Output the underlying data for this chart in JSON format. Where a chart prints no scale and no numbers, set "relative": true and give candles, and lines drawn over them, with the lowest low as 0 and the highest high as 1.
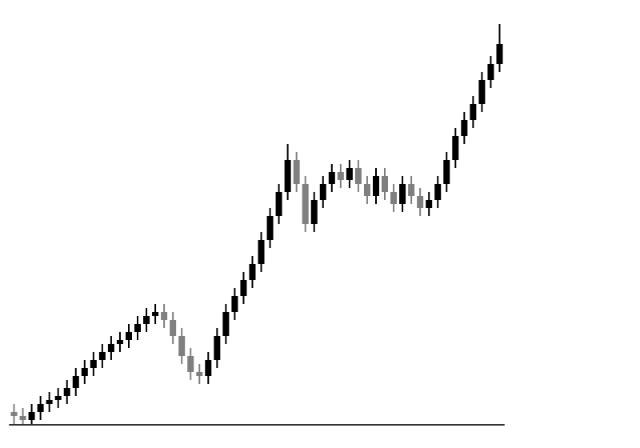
{
  "chart_data": {
    "type": "candlestick",
    "relative": true,
    "grid": false,
    "colors": [
      "#7f7f7f",
      "#7f7f7f",
      "#000000",
      "#000000",
      "#000000",
      "#000000",
      "#000000",
      "#000000",
      "#000000",
      "#000000",
      "#000000",
      "#000000",
      "#000000",
      "#000000",
      "#000000",
      "#000000",
      "#000000",
      "#7f7f7f",
      "#7f7f7f",
      "#7f7f7f",
      "#7f7f7f",
      "#7f7f7f",
      "#000000",
      "#000000",
      "#000000",
      "#000000",
      "#000000",
      "#000000",
      "#000000",
      "#000000",
      "#000000",
      "#000000",
      "#7f7f7f",
      "#7f7f7f",
      "#000000",
      "#000000",
      "#000000",
      "#7f7f7f",
      "#000000",
      "#7f7f7f",
      "#7f7f7f",
      "#000000",
      "#7f7f7f",
      "#7f7f7f",
      "#000000",
      "#7f7f7f",
      "#7f7f7f",
      "#000000",
      "#000000",
      "#000000",
      "#000000",
      "#000000",
      "#000000",
      "#000000",
      "#000000",
      "#000000"
    ],
    "categories": [
      null,
      null,
      null,
      null,
      null,
      null,
      null,
      null,
      null,
      null,
      null,
      null,
      null,
      null,
      null,
      null,
      null,
      null,
      null,
      null,
      null,
      null,
      null,
      null,
      null,
      null,
      null,
      null,
      null,
      null,
      null,
      null,
      null,
      null,
      null,
      null,
      null,
      null,
      null,
      null,
      null,
      null,
      null,
      null,
      null,
      null,
      null,
      null,
      null,
      null,
      null,
      null,
      null,
      null,
      null,
      null
    ],
    "ohlc": [
      [
        0.03,
        0.05,
        0.0,
        0.02
      ],
      [
        0.02,
        0.04,
        0.0,
        0.01
      ],
      [
        0.01,
        0.05,
        0.0,
        0.03
      ],
      [
        0.03,
        0.07,
        0.01,
        0.05
      ],
      [
        0.05,
        0.08,
        0.03,
        0.06
      ],
      [
        0.06,
        0.09,
        0.04,
        0.07
      ],
      [
        0.07,
        0.11,
        0.05,
        0.09
      ],
      [
        0.09,
        0.14,
        0.07,
        0.12
      ],
      [
        0.12,
        0.16,
        0.1,
        0.14
      ],
      [
        0.14,
        0.18,
        0.12,
        0.16
      ],
      [
        0.16,
        0.2,
        0.14,
        0.18
      ],
      [
        0.18,
        0.22,
        0.16,
        0.2
      ],
      [
        0.2,
        0.23,
        0.18,
        0.21
      ],
      [
        0.21,
        0.25,
        0.19,
        0.23
      ],
      [
        0.23,
        0.27,
        0.21,
        0.25
      ],
      [
        0.25,
        0.29,
        0.23,
        0.27
      ],
      [
        0.27,
        0.3,
        0.25,
        0.28
      ],
      [
        0.28,
        0.3,
        0.24,
        0.26
      ],
      [
        0.26,
        0.28,
        0.2,
        0.22
      ],
      [
        0.22,
        0.24,
        0.15,
        0.17
      ],
      [
        0.17,
        0.19,
        0.11,
        0.13
      ],
      [
        0.13,
        0.15,
        0.1,
        0.12
      ],
      [
        0.12,
        0.18,
        0.1,
        0.16
      ],
      [
        0.16,
        0.24,
        0.14,
        0.22
      ],
      [
        0.22,
        0.3,
        0.2,
        0.28
      ],
      [
        0.28,
        0.34,
        0.26,
        0.32
      ],
      [
        0.32,
        0.38,
        0.3,
        0.36
      ],
      [
        0.36,
        0.42,
        0.34,
        0.4
      ],
      [
        0.4,
        0.48,
        0.38,
        0.46
      ],
      [
        0.46,
        0.54,
        0.44,
        0.52
      ],
      [
        0.52,
        0.6,
        0.5,
        0.58
      ],
      [
        0.58,
        0.7,
        0.56,
        0.66
      ],
      [
        0.66,
        0.68,
        0.58,
        0.6
      ],
      [
        0.6,
        0.62,
        0.48,
        0.5
      ],
      [
        0.5,
        0.58,
        0.48,
        0.56
      ],
      [
        0.56,
        0.62,
        0.54,
        0.6
      ],
      [
        0.6,
        0.65,
        0.58,
        0.63
      ],
      [
        0.63,
        0.65,
        0.59,
        0.61
      ],
      [
        0.61,
        0.66,
        0.59,
        0.64
      ],
      [
        0.64,
        0.66,
        0.58,
        0.6
      ],
      [
        0.6,
        0.62,
        0.55,
        0.57
      ],
      [
        0.57,
        0.64,
        0.55,
        0.62
      ],
      [
        0.62,
        0.64,
        0.56,
        0.58
      ],
      [
        0.58,
        0.6,
        0.53,
        0.55
      ],
      [
        0.55,
        0.62,
        0.53,
        0.6
      ],
      [
        0.6,
        0.62,
        0.55,
        0.57
      ],
      [
        0.57,
        0.59,
        0.52,
        0.54
      ],
      [
        0.54,
        0.58,
        0.52,
        0.56
      ],
      [
        0.56,
        0.62,
        0.54,
        0.6
      ],
      [
        0.6,
        0.68,
        0.58,
        0.66
      ],
      [
        0.66,
        0.74,
        0.64,
        0.72
      ],
      [
        0.72,
        0.78,
        0.7,
        0.76
      ],
      [
        0.76,
        0.82,
        0.74,
        0.8
      ],
      [
        0.8,
        0.88,
        0.78,
        0.86
      ],
      [
        0.86,
        0.92,
        0.84,
        0.9
      ],
      [
        0.9,
        1.0,
        0.88,
        0.95
      ]
    ]
  }
}
